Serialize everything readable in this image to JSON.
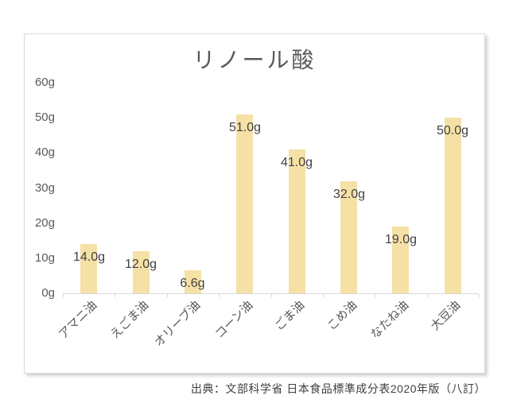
{
  "chart_data": {
    "type": "bar",
    "title": "リノール酸",
    "categories": [
      "アマニ油",
      "えごま油",
      "オリーブ油",
      "コーン油",
      "ごま油",
      "こめ油",
      "なたね油",
      "大豆油"
    ],
    "values": [
      14.0,
      12.0,
      6.6,
      51.0,
      41.0,
      32.0,
      19.0,
      50.0
    ],
    "data_labels": [
      "14.0g",
      "12.0g",
      "6.6g",
      "51.0g",
      "41.0g",
      "32.0g",
      "19.0g",
      "50.0g"
    ],
    "ylim": [
      0,
      60
    ],
    "ytick_step": 10,
    "ytick_labels": [
      "0g",
      "10g",
      "20g",
      "30g",
      "40g",
      "50g",
      "60g"
    ],
    "grid": false,
    "legend": false,
    "bar_color": "#f5e0a6",
    "axis_color": "#d9d9d9",
    "value_label_color": "#404040",
    "tick_label_color": "#595959",
    "title_color": "#595959"
  },
  "source": {
    "text": "出典：文部科学省 日本食品標準成分表2020年版（八訂）"
  }
}
